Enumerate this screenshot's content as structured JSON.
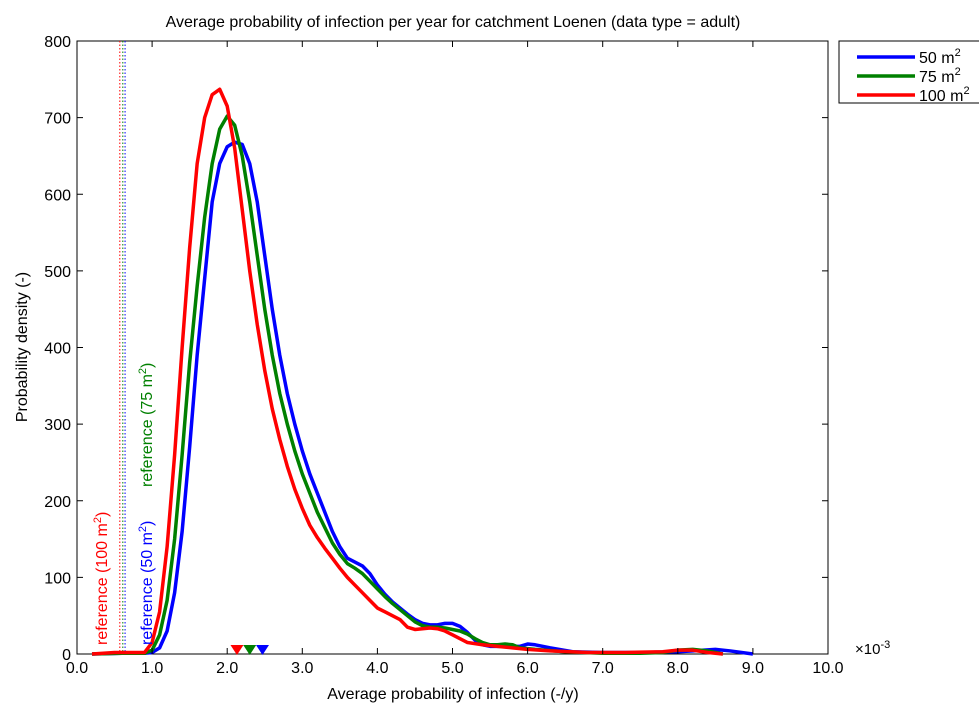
{
  "chart_data": {
    "type": "line",
    "title": "Average probability of infection per year for catchment Loenen (data type = adult)",
    "xlabel": "Average probability of infection (-/y)",
    "ylabel": "Probability density (-)",
    "x_multiplier_label": "×10-3",
    "x_multiplier_base": "×10",
    "x_multiplier_exp": "-3",
    "xlim": [
      0,
      10
    ],
    "ylim": [
      0,
      800
    ],
    "x_ticks": [
      0,
      1,
      2,
      3,
      4,
      5,
      6,
      7,
      8,
      9,
      10
    ],
    "x_tick_labels": [
      "0.0",
      "1.0",
      "2.0",
      "3.0",
      "4.0",
      "5.0",
      "6.0",
      "7.0",
      "8.0",
      "9.0",
      "10.0"
    ],
    "y_ticks": [
      0,
      100,
      200,
      300,
      400,
      500,
      600,
      700,
      800
    ],
    "y_tick_labels": [
      "0",
      "100",
      "200",
      "300",
      "400",
      "500",
      "600",
      "700",
      "800"
    ],
    "grid": false,
    "legend_position": "outside top-right",
    "series": [
      {
        "name": "50 m2",
        "legend_base": "50 m",
        "legend_sup": "2",
        "color": "#0000ff",
        "points": [
          [
            0.2,
            0
          ],
          [
            0.6,
            1
          ],
          [
            0.9,
            1
          ],
          [
            1.0,
            2
          ],
          [
            1.1,
            8
          ],
          [
            1.2,
            30
          ],
          [
            1.3,
            80
          ],
          [
            1.4,
            160
          ],
          [
            1.5,
            270
          ],
          [
            1.6,
            390
          ],
          [
            1.7,
            490
          ],
          [
            1.8,
            590
          ],
          [
            1.9,
            640
          ],
          [
            2.0,
            662
          ],
          [
            2.1,
            668
          ],
          [
            2.2,
            665
          ],
          [
            2.3,
            640
          ],
          [
            2.4,
            590
          ],
          [
            2.5,
            520
          ],
          [
            2.6,
            450
          ],
          [
            2.7,
            390
          ],
          [
            2.8,
            340
          ],
          [
            2.9,
            300
          ],
          [
            3.0,
            265
          ],
          [
            3.1,
            235
          ],
          [
            3.2,
            210
          ],
          [
            3.3,
            185
          ],
          [
            3.4,
            160
          ],
          [
            3.5,
            140
          ],
          [
            3.6,
            125
          ],
          [
            3.7,
            120
          ],
          [
            3.8,
            115
          ],
          [
            3.9,
            105
          ],
          [
            4.0,
            90
          ],
          [
            4.1,
            78
          ],
          [
            4.2,
            68
          ],
          [
            4.3,
            60
          ],
          [
            4.4,
            52
          ],
          [
            4.5,
            45
          ],
          [
            4.6,
            40
          ],
          [
            4.7,
            38
          ],
          [
            4.8,
            38
          ],
          [
            4.9,
            40
          ],
          [
            5.0,
            40
          ],
          [
            5.1,
            36
          ],
          [
            5.2,
            28
          ],
          [
            5.3,
            18
          ],
          [
            5.4,
            12
          ],
          [
            5.5,
            10
          ],
          [
            5.7,
            10
          ],
          [
            5.9,
            10
          ],
          [
            6.0,
            13
          ],
          [
            6.1,
            12
          ],
          [
            6.3,
            8
          ],
          [
            6.6,
            3
          ],
          [
            7.0,
            2
          ],
          [
            7.5,
            2
          ],
          [
            8.0,
            3
          ],
          [
            8.2,
            4
          ],
          [
            8.5,
            6
          ],
          [
            8.7,
            4
          ],
          [
            9.0,
            0
          ]
        ]
      },
      {
        "name": "75 m2",
        "legend_base": "75 m",
        "legend_sup": "2",
        "color": "#008000",
        "points": [
          [
            0.2,
            0
          ],
          [
            0.6,
            1
          ],
          [
            0.9,
            1
          ],
          [
            1.0,
            5
          ],
          [
            1.1,
            25
          ],
          [
            1.2,
            70
          ],
          [
            1.3,
            150
          ],
          [
            1.4,
            260
          ],
          [
            1.5,
            380
          ],
          [
            1.6,
            480
          ],
          [
            1.7,
            570
          ],
          [
            1.8,
            640
          ],
          [
            1.9,
            685
          ],
          [
            2.0,
            702
          ],
          [
            2.1,
            690
          ],
          [
            2.2,
            650
          ],
          [
            2.3,
            590
          ],
          [
            2.4,
            520
          ],
          [
            2.5,
            450
          ],
          [
            2.6,
            390
          ],
          [
            2.7,
            340
          ],
          [
            2.8,
            300
          ],
          [
            2.9,
            265
          ],
          [
            3.0,
            235
          ],
          [
            3.1,
            210
          ],
          [
            3.2,
            185
          ],
          [
            3.3,
            165
          ],
          [
            3.4,
            145
          ],
          [
            3.5,
            130
          ],
          [
            3.6,
            118
          ],
          [
            3.7,
            112
          ],
          [
            3.8,
            105
          ],
          [
            3.9,
            95
          ],
          [
            4.0,
            85
          ],
          [
            4.1,
            75
          ],
          [
            4.2,
            66
          ],
          [
            4.3,
            58
          ],
          [
            4.4,
            50
          ],
          [
            4.5,
            42
          ],
          [
            4.6,
            37
          ],
          [
            4.7,
            35
          ],
          [
            4.8,
            35
          ],
          [
            4.9,
            34
          ],
          [
            5.0,
            32
          ],
          [
            5.1,
            30
          ],
          [
            5.2,
            26
          ],
          [
            5.3,
            20
          ],
          [
            5.4,
            15
          ],
          [
            5.5,
            12
          ],
          [
            5.6,
            12
          ],
          [
            5.7,
            13
          ],
          [
            5.8,
            12
          ],
          [
            5.9,
            8
          ],
          [
            6.1,
            6
          ],
          [
            6.5,
            3
          ],
          [
            7.0,
            1
          ],
          [
            7.5,
            1
          ],
          [
            7.8,
            2
          ],
          [
            8.0,
            5
          ],
          [
            8.2,
            6
          ],
          [
            8.4,
            4
          ],
          [
            8.6,
            0
          ]
        ]
      },
      {
        "name": "100 m2",
        "legend_base": "100 m",
        "legend_sup": "2",
        "color": "#ff0000",
        "points": [
          [
            0.2,
            0
          ],
          [
            0.5,
            2
          ],
          [
            0.7,
            2
          ],
          [
            0.9,
            2
          ],
          [
            1.0,
            15
          ],
          [
            1.1,
            55
          ],
          [
            1.2,
            140
          ],
          [
            1.3,
            260
          ],
          [
            1.4,
            400
          ],
          [
            1.5,
            530
          ],
          [
            1.6,
            640
          ],
          [
            1.7,
            700
          ],
          [
            1.8,
            730
          ],
          [
            1.9,
            737
          ],
          [
            2.0,
            715
          ],
          [
            2.1,
            660
          ],
          [
            2.2,
            580
          ],
          [
            2.3,
            500
          ],
          [
            2.4,
            430
          ],
          [
            2.5,
            370
          ],
          [
            2.6,
            320
          ],
          [
            2.7,
            280
          ],
          [
            2.8,
            245
          ],
          [
            2.9,
            215
          ],
          [
            3.0,
            190
          ],
          [
            3.1,
            168
          ],
          [
            3.2,
            152
          ],
          [
            3.3,
            138
          ],
          [
            3.4,
            125
          ],
          [
            3.5,
            112
          ],
          [
            3.6,
            100
          ],
          [
            3.7,
            90
          ],
          [
            3.8,
            80
          ],
          [
            3.9,
            70
          ],
          [
            4.0,
            60
          ],
          [
            4.1,
            55
          ],
          [
            4.2,
            50
          ],
          [
            4.3,
            45
          ],
          [
            4.4,
            35
          ],
          [
            4.5,
            32
          ],
          [
            4.6,
            33
          ],
          [
            4.7,
            34
          ],
          [
            4.8,
            33
          ],
          [
            4.9,
            30
          ],
          [
            5.0,
            25
          ],
          [
            5.1,
            20
          ],
          [
            5.2,
            15
          ],
          [
            5.4,
            12
          ],
          [
            5.6,
            10
          ],
          [
            5.8,
            8
          ],
          [
            6.0,
            6
          ],
          [
            6.3,
            4
          ],
          [
            6.8,
            2
          ],
          [
            7.3,
            2
          ],
          [
            7.8,
            3
          ],
          [
            8.0,
            5
          ],
          [
            8.2,
            5
          ],
          [
            8.4,
            2
          ],
          [
            8.6,
            0
          ]
        ]
      }
    ],
    "references": [
      {
        "label_base": "reference (100 m",
        "label_sup": "2",
        "label_close": ")",
        "x": 0.57,
        "color": "#ff0000"
      },
      {
        "label_base": "reference (50 m",
        "label_sup": "2",
        "label_close": ")",
        "x": 0.64,
        "color": "#0000ff"
      },
      {
        "label_base": "reference (75 m",
        "label_sup": "2",
        "label_close": ")",
        "x": 0.61,
        "color": "#008000"
      }
    ],
    "markers": [
      {
        "x": 2.13,
        "color": "#ff0000"
      },
      {
        "x": 2.3,
        "color": "#008000"
      },
      {
        "x": 2.47,
        "color": "#0000ff"
      }
    ]
  }
}
